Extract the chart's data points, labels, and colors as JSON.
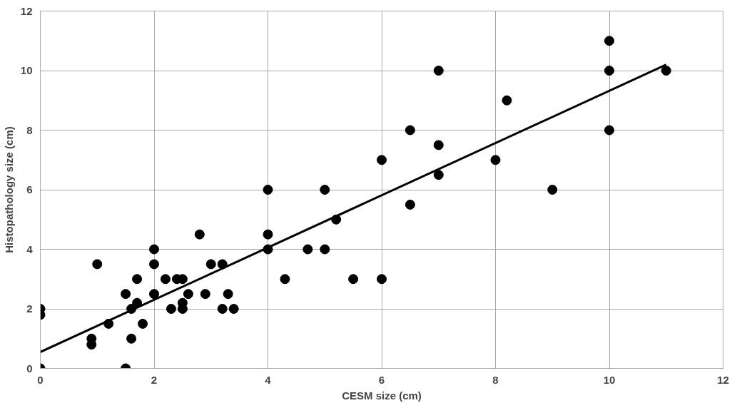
{
  "chart_data": {
    "type": "scatter",
    "xlabel": "CESM size (cm)",
    "ylabel": "Histopathology size (cm)",
    "xlim": [
      0,
      12
    ],
    "ylim": [
      0,
      12
    ],
    "xticks": [
      0,
      2,
      4,
      6,
      8,
      10,
      12
    ],
    "yticks": [
      0,
      2,
      4,
      6,
      8,
      10,
      12
    ],
    "grid": true,
    "series": [
      {
        "marker": "circle",
        "color": "#000000",
        "x": [
          0,
          0,
          0,
          0.9,
          0.9,
          1,
          1.2,
          1.5,
          1.5,
          1.6,
          1.6,
          1.7,
          1.7,
          1.8,
          2,
          2,
          2,
          2.2,
          2.3,
          2.4,
          2.5,
          2.5,
          2.5,
          2.6,
          2.8,
          2.9,
          3,
          3.2,
          3.2,
          3.3,
          3.4,
          4,
          4,
          4,
          4.3,
          4.7,
          5,
          5,
          5.2,
          5.5,
          6,
          6,
          6.5,
          6.5,
          7,
          7,
          7,
          8,
          8.2,
          9,
          10,
          10,
          10,
          11
        ],
        "values": [
          2,
          1.8,
          0,
          1,
          0.8,
          3.5,
          1.5,
          2.5,
          0,
          2,
          1,
          3,
          2.2,
          1.5,
          4,
          3.5,
          2.5,
          3,
          2,
          3,
          3,
          2.2,
          2,
          2.5,
          4.5,
          2.5,
          3.5,
          3.5,
          2,
          2.5,
          2,
          6,
          4.5,
          4,
          3,
          4,
          6,
          4,
          5,
          3,
          7,
          3,
          8,
          5.5,
          10,
          7.5,
          6.5,
          7,
          9,
          6,
          11,
          10,
          8,
          10
        ]
      },
      {
        "type": "line",
        "color": "#000000",
        "x": [
          0,
          11
        ],
        "values": [
          0.55,
          10.2
        ]
      }
    ]
  }
}
